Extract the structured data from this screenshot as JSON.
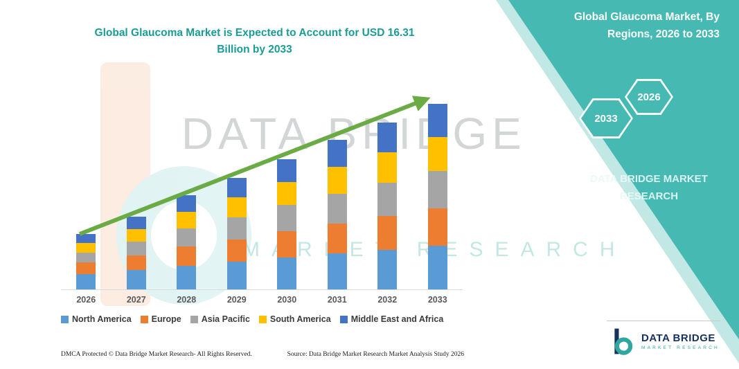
{
  "title": {
    "line1": "Global Glaucoma Market is Expected to Account for USD 16.31",
    "line2": "Billion by 2033"
  },
  "side_panel": {
    "heading_line1": "Global Glaucoma Market, By",
    "heading_line2": "Regions, 2026 to 2033",
    "hexagon_left": "2033",
    "hexagon_right": "2026",
    "brand": "DATA BRIDGE MARKET RESEARCH",
    "bg_color": "#46BAB2"
  },
  "watermark": {
    "big": "DATA BRIDGE",
    "sub": "MARKET RESEARCH"
  },
  "chart_data": {
    "type": "bar",
    "stacked": true,
    "title": "Global Glaucoma Market is Expected to Account for USD 16.31 Billion by 2033",
    "unit": "USD Billion",
    "categories": [
      "2026",
      "2027",
      "2028",
      "2029",
      "2030",
      "2031",
      "2032",
      "2033"
    ],
    "series": [
      {
        "name": "North America",
        "color": "#5B9BD5",
        "values": [
          1.35,
          1.7,
          2.1,
          2.42,
          2.8,
          3.15,
          3.5,
          3.85
        ]
      },
      {
        "name": "Europe",
        "color": "#ED7D31",
        "values": [
          1.0,
          1.3,
          1.68,
          1.98,
          2.32,
          2.65,
          2.96,
          3.3
        ]
      },
      {
        "name": "Asia Pacific",
        "color": "#A5A5A5",
        "values": [
          0.9,
          1.22,
          1.6,
          1.92,
          2.28,
          2.62,
          2.94,
          3.28
        ]
      },
      {
        "name": "South America",
        "color": "#FFC000",
        "values": [
          0.82,
          1.1,
          1.46,
          1.75,
          2.06,
          2.38,
          2.66,
          2.98
        ]
      },
      {
        "name": "Middle East and Africa",
        "color": "#4472C4",
        "values": [
          0.82,
          1.09,
          1.42,
          1.71,
          2.01,
          2.32,
          2.61,
          2.9
        ]
      }
    ],
    "totals": [
      4.89,
      6.41,
      8.26,
      9.78,
      11.47,
      13.12,
      14.67,
      16.31
    ],
    "ylim": [
      0,
      16.31
    ],
    "legend_position": "bottom",
    "grid": false,
    "trend_arrow": {
      "present": true,
      "color": "#6BAB45"
    }
  },
  "footer": {
    "dmca": "DMCA Protected © Data Bridge Market Research-  All Rights Reserved.",
    "source": "Source: Data Bridge Market Research  Market Analysis Study 2026"
  },
  "logo": {
    "title": "DATA BRIDGE",
    "subtitle": "MARKET RESEARCH"
  }
}
